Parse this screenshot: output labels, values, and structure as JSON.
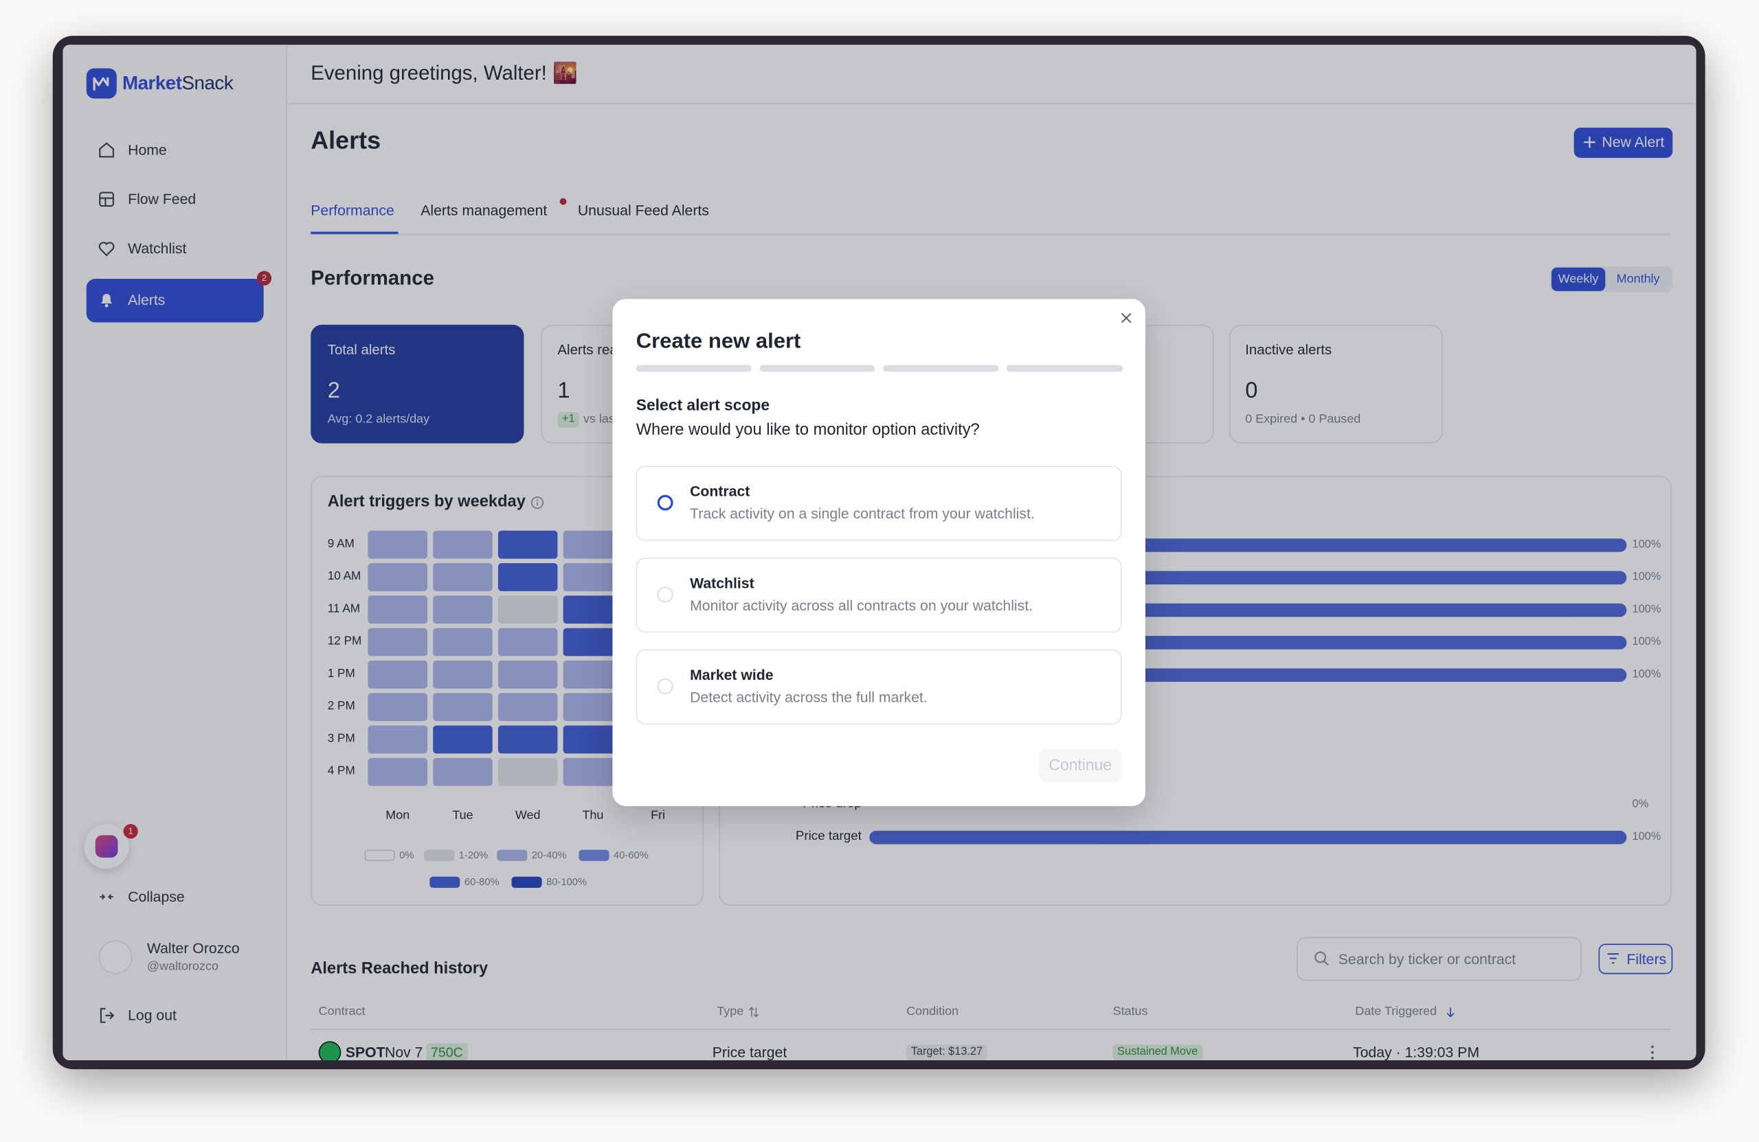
{
  "sidebar": {
    "brand_bold": "Market",
    "brand_light": "Snack",
    "nav": [
      {
        "label": "Home"
      },
      {
        "label": "Flow Feed"
      },
      {
        "label": "Watchlist"
      },
      {
        "label": "Alerts",
        "badge": 2
      }
    ],
    "chat_badge": 1,
    "collapse": "Collapse",
    "user_name": "Walter Orozco",
    "user_handle": "@waltorozco",
    "logout": "Log out"
  },
  "header": {
    "greeting": "Evening greetings, Walter! 🌇"
  },
  "page": {
    "title": "Alerts",
    "new_alert": "New Alert",
    "tabs": [
      "Performance",
      "Alerts management",
      "Unusual Feed Alerts"
    ],
    "section_title": "Performance",
    "period_toggle": [
      "Weekly",
      "Monthly"
    ]
  },
  "cards": [
    {
      "label": "Total alerts",
      "value": 2,
      "note": "Avg: 0.2 alerts/day"
    },
    {
      "label": "Alerts reached",
      "value": 1,
      "delta": "+1",
      "note": "vs last week"
    },
    {
      "label": "Inactive alerts",
      "value": 0,
      "note": "0 Expired • 0 Paused"
    }
  ],
  "chart_data": [
    {
      "type": "heatmap",
      "title": "Alert triggers by weekday",
      "categories": [
        "Mon",
        "Tue",
        "Wed",
        "Thu",
        "Fri"
      ],
      "rows": [
        "9 AM",
        "10 AM",
        "11 AM",
        "12 PM",
        "1 PM",
        "2 PM",
        "3 PM",
        "4 PM"
      ],
      "values": [
        [
          2,
          2,
          4,
          2,
          null
        ],
        [
          2,
          2,
          4,
          2,
          null
        ],
        [
          2,
          2,
          1,
          4,
          null
        ],
        [
          2,
          2,
          2,
          4,
          null
        ],
        [
          2,
          2,
          2,
          2,
          null
        ],
        [
          2,
          2,
          2,
          2,
          null
        ],
        [
          2,
          4,
          4,
          4,
          null
        ],
        [
          2,
          2,
          1,
          2,
          null
        ]
      ],
      "legend": [
        {
          "label": "0%",
          "color": "#ffffff"
        },
        {
          "label": "1-20%",
          "color": "#e0e2e9"
        },
        {
          "label": "20-40%",
          "color": "#aab6ec"
        },
        {
          "label": "40-60%",
          "color": "#7088e4"
        },
        {
          "label": "60-80%",
          "color": "#3f5cd6"
        },
        {
          "label": "80-100%",
          "color": "#2643c2"
        }
      ]
    },
    {
      "type": "bar",
      "orientation": "horizontal",
      "categories": [
        null,
        null,
        null,
        null,
        null,
        "Price drop",
        "Price target"
      ],
      "values": [
        100,
        100,
        100,
        100,
        100,
        0,
        100
      ],
      "value_labels": [
        "100%",
        "100%",
        "100%",
        "100%",
        "100%",
        "0%",
        "100%"
      ],
      "xlim": [
        0,
        100
      ],
      "color": "#4b66d8"
    }
  ],
  "history": {
    "title": "Alerts Reached history",
    "search_placeholder": "Search by ticker or contract",
    "filters": "Filters",
    "columns": [
      "Contract",
      "Type",
      "Condition",
      "Status",
      "Date Triggered"
    ],
    "rows": [
      {
        "ticker": "SPOT",
        "expiry": "Nov 7",
        "strike": "750C",
        "type": "Price target",
        "condition": "Target: $13.27",
        "status": "Sustained Move",
        "date": "Today · 1:39:03 PM"
      }
    ]
  },
  "modal": {
    "title": "Create new alert",
    "step_heading": "Select alert scope",
    "question": "Where would you like to monitor option activity?",
    "options": [
      {
        "title": "Contract",
        "description": "Track activity on a single contract from your watchlist."
      },
      {
        "title": "Watchlist",
        "description": "Monitor activity across all contracts on your watchlist."
      },
      {
        "title": "Market wide",
        "description": "Detect activity across the full market."
      }
    ],
    "continue": "Continue"
  }
}
